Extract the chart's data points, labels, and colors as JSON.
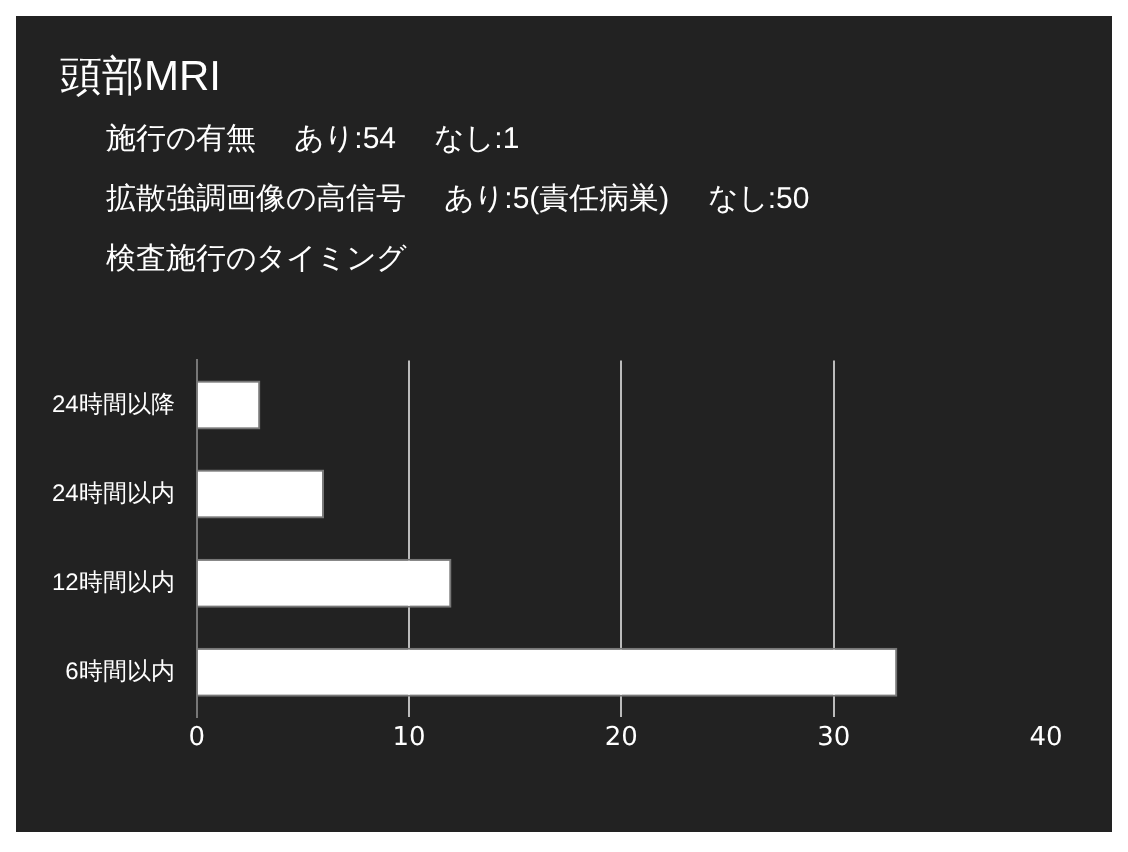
{
  "chart_data": {
    "type": "bar",
    "orientation": "horizontal",
    "title": "頭部MRI",
    "annotations": [
      "施行の有無　 あり:54　 なし:1",
      "拡散強調画像の高信号　 あり:5(責任病巣)　 なし:50",
      "検査施行のタイミング"
    ],
    "categories": [
      "24時間以降",
      "24時間以内",
      "12時間以内",
      "6時間以内"
    ],
    "values": [
      3,
      6,
      12,
      33
    ],
    "color": "#ffffff",
    "xlim": [
      0,
      40
    ],
    "xticks": [
      0,
      10,
      20,
      30,
      40
    ],
    "grid": "x",
    "legend": false
  }
}
